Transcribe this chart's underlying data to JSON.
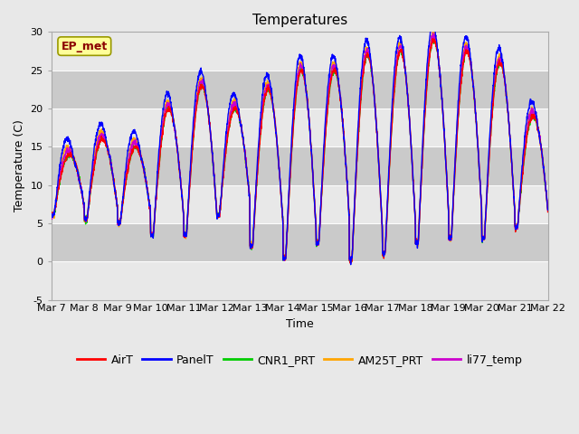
{
  "title": "Temperatures",
  "xlabel": "Time",
  "ylabel": "Temperature (C)",
  "ylim": [
    -5,
    30
  ],
  "x_tick_labels": [
    "Mar 7",
    "Mar 8",
    "Mar 9",
    "Mar 10",
    "Mar 11",
    "Mar 12",
    "Mar 13",
    "Mar 14",
    "Mar 15",
    "Mar 16",
    "Mar 17",
    "Mar 18",
    "Mar 19",
    "Mar 20",
    "Mar 21",
    "Mar 22"
  ],
  "yticks": [
    -5,
    0,
    5,
    10,
    15,
    20,
    25,
    30
  ],
  "annotation_text": "EP_met",
  "annotation_color": "#8B0000",
  "annotation_bg": "#FFFF99",
  "annotation_edge": "#999900",
  "fig_bg": "#E8E8E8",
  "plot_bg": "#DCDCDC",
  "band_light": "#E8E8E8",
  "band_dark": "#CACACA",
  "series_colors": {
    "AirT": "#FF0000",
    "PanelT": "#0000FF",
    "CNR1_PRT": "#00CC00",
    "AM25T_PRT": "#FFA500",
    "li77_temp": "#CC00CC"
  },
  "series_linewidth": 1.0,
  "n_days": 15,
  "points_per_day": 144,
  "day_mins": [
    6.0,
    5.5,
    5.0,
    3.5,
    3.5,
    6.0,
    2.0,
    0.5,
    2.5,
    0.2,
    1.0,
    2.5,
    3.0,
    3.0,
    4.5
  ],
  "day_maxs": [
    14.0,
    16.0,
    15.0,
    20.0,
    23.0,
    20.0,
    22.5,
    25.0,
    25.0,
    27.0,
    27.5,
    29.0,
    27.5,
    26.0,
    19.0
  ],
  "title_fontsize": 11,
  "label_fontsize": 9,
  "tick_fontsize": 8,
  "legend_fontsize": 9
}
